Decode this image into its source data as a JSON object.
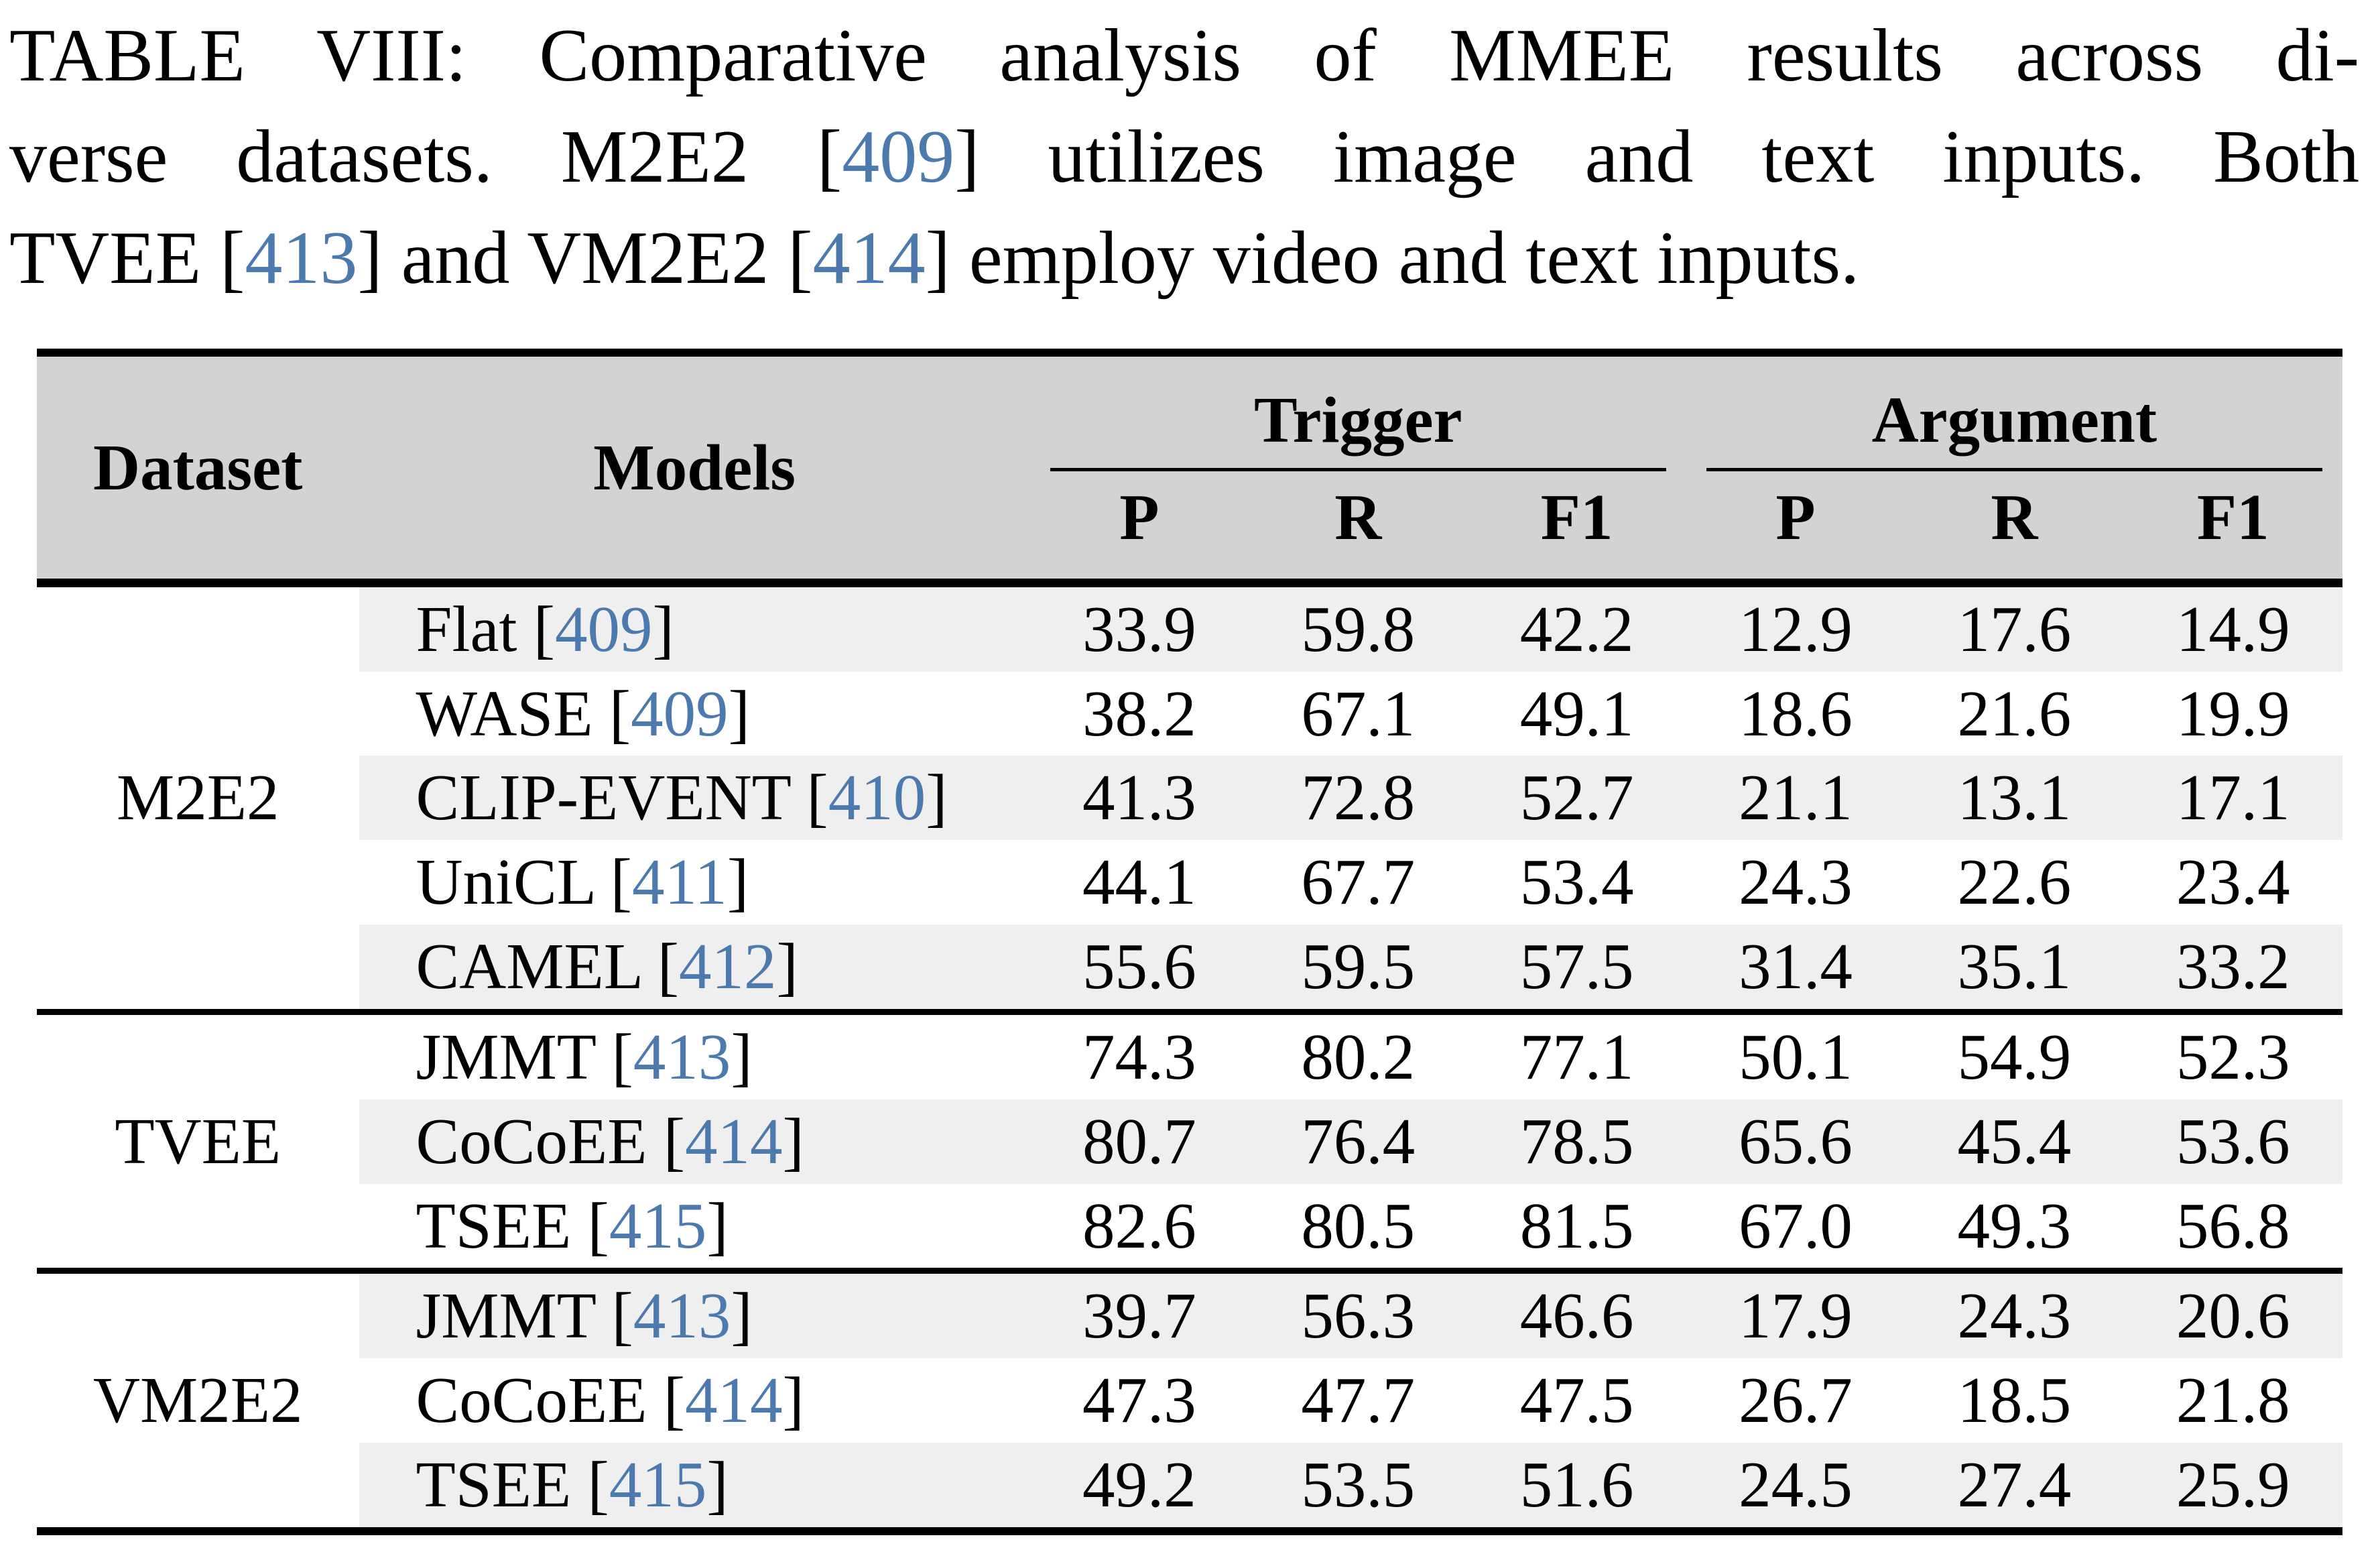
{
  "caption": {
    "line1": "TABLE VIII: Comparative analysis of MMEE results across di-",
    "line2": {
      "pre": "verse datasets. M2E2 [",
      "cite": "409",
      "post": "] utilizes image and text inputs. Both"
    },
    "line3": {
      "pre": "TVEE [",
      "cite1": "413",
      "mid": "] and VM2E2 [",
      "cite2": "414",
      "post": "] employ video and text inputs."
    }
  },
  "table": {
    "header": {
      "dataset": "Dataset",
      "models": "Models",
      "group1": "Trigger",
      "group2": "Argument",
      "subcols": [
        "P",
        "R",
        "F1",
        "P",
        "R",
        "F1"
      ]
    },
    "sections": [
      {
        "dataset": "M2E2",
        "rows": [
          {
            "model": {
              "pre": "Flat [",
              "cite": "409",
              "post": "]"
            },
            "vals": [
              "33.9",
              "59.8",
              "42.2",
              "12.9",
              "17.6",
              "14.9"
            ]
          },
          {
            "model": {
              "pre": "WASE [",
              "cite": "409",
              "post": "]"
            },
            "vals": [
              "38.2",
              "67.1",
              "49.1",
              "18.6",
              "21.6",
              "19.9"
            ]
          },
          {
            "model": {
              "pre": "CLIP-EVENT [",
              "cite": "410",
              "post": "]"
            },
            "vals": [
              "41.3",
              "72.8",
              "52.7",
              "21.1",
              "13.1",
              "17.1"
            ]
          },
          {
            "model": {
              "pre": "UniCL [",
              "cite": "411",
              "post": "]"
            },
            "vals": [
              "44.1",
              "67.7",
              "53.4",
              "24.3",
              "22.6",
              "23.4"
            ]
          },
          {
            "model": {
              "pre": "CAMEL [",
              "cite": "412",
              "post": "]"
            },
            "vals": [
              "55.6",
              "59.5",
              "57.5",
              "31.4",
              "35.1",
              "33.2"
            ]
          }
        ]
      },
      {
        "dataset": "TVEE",
        "rows": [
          {
            "model": {
              "pre": "JMMT [",
              "cite": "413",
              "post": "]"
            },
            "vals": [
              "74.3",
              "80.2",
              "77.1",
              "50.1",
              "54.9",
              "52.3"
            ]
          },
          {
            "model": {
              "pre": "CoCoEE [",
              "cite": "414",
              "post": "]"
            },
            "vals": [
              "80.7",
              "76.4",
              "78.5",
              "65.6",
              "45.4",
              "53.6"
            ]
          },
          {
            "model": {
              "pre": "TSEE [",
              "cite": "415",
              "post": "]"
            },
            "vals": [
              "82.6",
              "80.5",
              "81.5",
              "67.0",
              "49.3",
              "56.8"
            ]
          }
        ]
      },
      {
        "dataset": "VM2E2",
        "rows": [
          {
            "model": {
              "pre": "JMMT [",
              "cite": "413",
              "post": "]"
            },
            "vals": [
              "39.7",
              "56.3",
              "46.6",
              "17.9",
              "24.3",
              "20.6"
            ]
          },
          {
            "model": {
              "pre": "CoCoEE [",
              "cite": "414",
              "post": "]"
            },
            "vals": [
              "47.3",
              "47.7",
              "47.5",
              "26.7",
              "18.5",
              "21.8"
            ]
          },
          {
            "model": {
              "pre": "TSEE [",
              "cite": "415",
              "post": "]"
            },
            "vals": [
              "49.2",
              "53.5",
              "51.6",
              "24.5",
              "27.4",
              "25.9"
            ]
          }
        ]
      }
    ]
  },
  "colors": {
    "citation_blue": "#4c79ae",
    "header_gray": "#d3d3d3",
    "row_alt_gray": "#efefef",
    "text_black": "#000000",
    "rule_black": "#000000"
  }
}
